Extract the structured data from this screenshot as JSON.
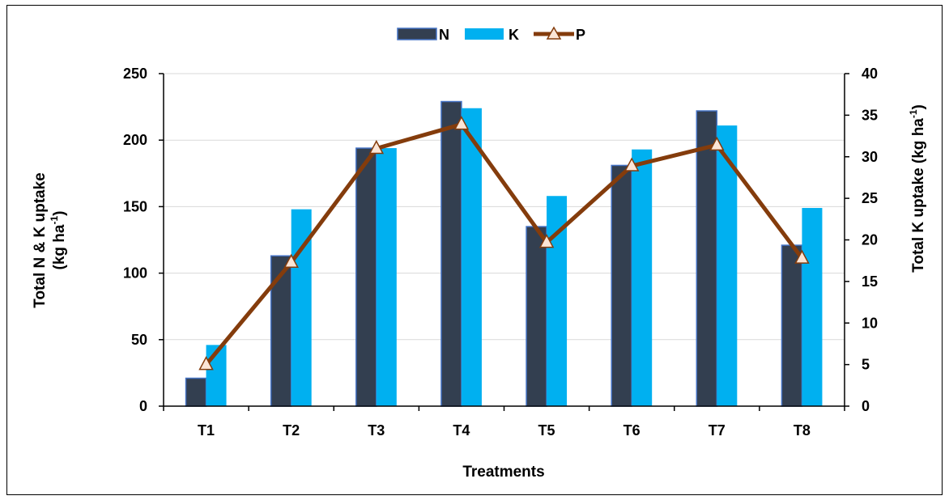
{
  "chart_data": {
    "type": "bar",
    "categories": [
      "T1",
      "T2",
      "T3",
      "T4",
      "T5",
      "T6",
      "T7",
      "T8"
    ],
    "series": [
      {
        "name": "N",
        "type": "bar",
        "axis": "left",
        "color": "#333f50",
        "values": [
          21,
          113,
          194,
          229,
          135,
          181,
          222,
          121
        ]
      },
      {
        "name": "K",
        "type": "bar",
        "axis": "left",
        "color": "#00b0f0",
        "values": [
          46,
          148,
          194,
          224,
          158,
          193,
          211,
          149
        ]
      },
      {
        "name": "P",
        "type": "line",
        "axis": "right",
        "color": "#843c0c",
        "marker": "triangle",
        "values": [
          5.0,
          17.3,
          31.0,
          33.9,
          19.7,
          28.9,
          31.4,
          17.8
        ]
      }
    ],
    "xlabel": "Treatments",
    "ylabel_line1": "Total N & K uptake",
    "ylabel_line2_prefix": "(kg ha",
    "ylabel_sup": "-1",
    "ylabel_line2_suffix": ")",
    "y2label_prefix": "Total K uptake (kg ha",
    "y2label_sup": "-1",
    "y2label_suffix": ")",
    "ylim": [
      0,
      250
    ],
    "yticks": [
      "0",
      "50",
      "100",
      "150",
      "200",
      "250"
    ],
    "y2lim": [
      0,
      40
    ],
    "y2ticks": [
      "0",
      "5",
      "10",
      "15",
      "20",
      "25",
      "30",
      "35",
      "40"
    ],
    "legend_position": "top",
    "grid": true
  }
}
